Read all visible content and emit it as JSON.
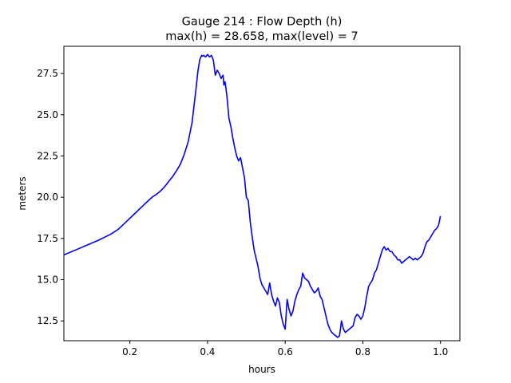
{
  "chart_data": {
    "type": "line",
    "title": "Gauge 214 : Flow Depth (h)",
    "subtitle": "max(h) =  28.658,    max(level) = 7",
    "xlabel": "hours",
    "ylabel": "meters",
    "xlim": [
      0.03,
      1.05
    ],
    "ylim": [
      11.3,
      29.15
    ],
    "xticks": [
      0.2,
      0.4,
      0.6,
      0.8,
      1.0
    ],
    "xtick_labels": [
      "0.2",
      "0.4",
      "0.6",
      "0.8",
      "1.0"
    ],
    "yticks": [
      12.5,
      15.0,
      17.5,
      20.0,
      22.5,
      25.0,
      27.5
    ],
    "ytick_labels": [
      "12.5",
      "15.0",
      "17.5",
      "20.0",
      "22.5",
      "25.0",
      "27.5"
    ],
    "grid": false,
    "series": [
      {
        "color": "#0000ff",
        "x": [
          0.03,
          0.06,
          0.09,
          0.12,
          0.15,
          0.17,
          0.19,
          0.21,
          0.23,
          0.25,
          0.26,
          0.27,
          0.28,
          0.29,
          0.3,
          0.31,
          0.32,
          0.33,
          0.34,
          0.35,
          0.36,
          0.37,
          0.375,
          0.38,
          0.383,
          0.385,
          0.387,
          0.39,
          0.395,
          0.4,
          0.405,
          0.41,
          0.415,
          0.42,
          0.425,
          0.43,
          0.435,
          0.44,
          0.442,
          0.445,
          0.448,
          0.45,
          0.455,
          0.46,
          0.465,
          0.47,
          0.475,
          0.48,
          0.485,
          0.49,
          0.495,
          0.5,
          0.505,
          0.51,
          0.515,
          0.52,
          0.525,
          0.53,
          0.535,
          0.54,
          0.545,
          0.55,
          0.555,
          0.56,
          0.565,
          0.57,
          0.575,
          0.58,
          0.585,
          0.59,
          0.595,
          0.6,
          0.605,
          0.61,
          0.615,
          0.62,
          0.625,
          0.63,
          0.635,
          0.64,
          0.645,
          0.65,
          0.655,
          0.66,
          0.665,
          0.67,
          0.675,
          0.68,
          0.685,
          0.69,
          0.695,
          0.7,
          0.705,
          0.71,
          0.715,
          0.72,
          0.725,
          0.73,
          0.735,
          0.74,
          0.745,
          0.75,
          0.755,
          0.76,
          0.765,
          0.77,
          0.775,
          0.78,
          0.785,
          0.79,
          0.795,
          0.8,
          0.805,
          0.81,
          0.815,
          0.82,
          0.825,
          0.83,
          0.835,
          0.84,
          0.845,
          0.85,
          0.855,
          0.86,
          0.865,
          0.87,
          0.875,
          0.88,
          0.885,
          0.89,
          0.895,
          0.9,
          0.905,
          0.91,
          0.915,
          0.92,
          0.925,
          0.93,
          0.935,
          0.94,
          0.945,
          0.95,
          0.955,
          0.96,
          0.965,
          0.97,
          0.975,
          0.98,
          0.985,
          0.99,
          0.995,
          1.0
        ],
        "y": [
          16.5,
          16.8,
          17.1,
          17.4,
          17.75,
          18.05,
          18.5,
          18.95,
          19.4,
          19.85,
          20.05,
          20.2,
          20.4,
          20.65,
          20.95,
          21.25,
          21.6,
          22.0,
          22.6,
          23.35,
          24.5,
          26.5,
          27.6,
          28.35,
          28.5,
          28.6,
          28.55,
          28.6,
          28.5,
          28.658,
          28.5,
          28.6,
          28.3,
          27.4,
          27.7,
          27.5,
          27.2,
          27.4,
          26.8,
          27.0,
          26.5,
          26.1,
          24.8,
          24.3,
          23.6,
          23.0,
          22.5,
          22.2,
          22.4,
          21.8,
          21.2,
          20.0,
          19.8,
          18.5,
          17.6,
          16.8,
          16.3,
          15.8,
          15.1,
          14.7,
          14.5,
          14.3,
          14.1,
          14.8,
          14.1,
          13.7,
          13.4,
          13.9,
          13.6,
          12.8,
          12.3,
          12.0,
          13.8,
          13.2,
          12.8,
          13.1,
          13.7,
          14.1,
          14.4,
          14.6,
          15.4,
          15.1,
          15.0,
          14.9,
          14.6,
          14.4,
          14.2,
          14.3,
          14.5,
          14.0,
          13.8,
          13.3,
          12.8,
          12.3,
          12.0,
          11.8,
          11.7,
          11.6,
          11.5,
          11.6,
          12.5,
          12.0,
          11.8,
          11.9,
          12.0,
          12.1,
          12.2,
          12.7,
          12.9,
          12.8,
          12.6,
          12.8,
          13.3,
          14.0,
          14.6,
          14.8,
          15.0,
          15.4,
          15.6,
          16.0,
          16.4,
          16.8,
          17.0,
          16.8,
          16.9,
          16.7,
          16.7,
          16.5,
          16.4,
          16.2,
          16.2,
          16.0,
          16.1,
          16.2,
          16.3,
          16.4,
          16.3,
          16.2,
          16.3,
          16.2,
          16.3,
          16.4,
          16.6,
          17.0,
          17.3,
          17.4,
          17.6,
          17.8,
          18.0,
          18.1,
          18.3,
          18.858
        ]
      }
    ]
  }
}
